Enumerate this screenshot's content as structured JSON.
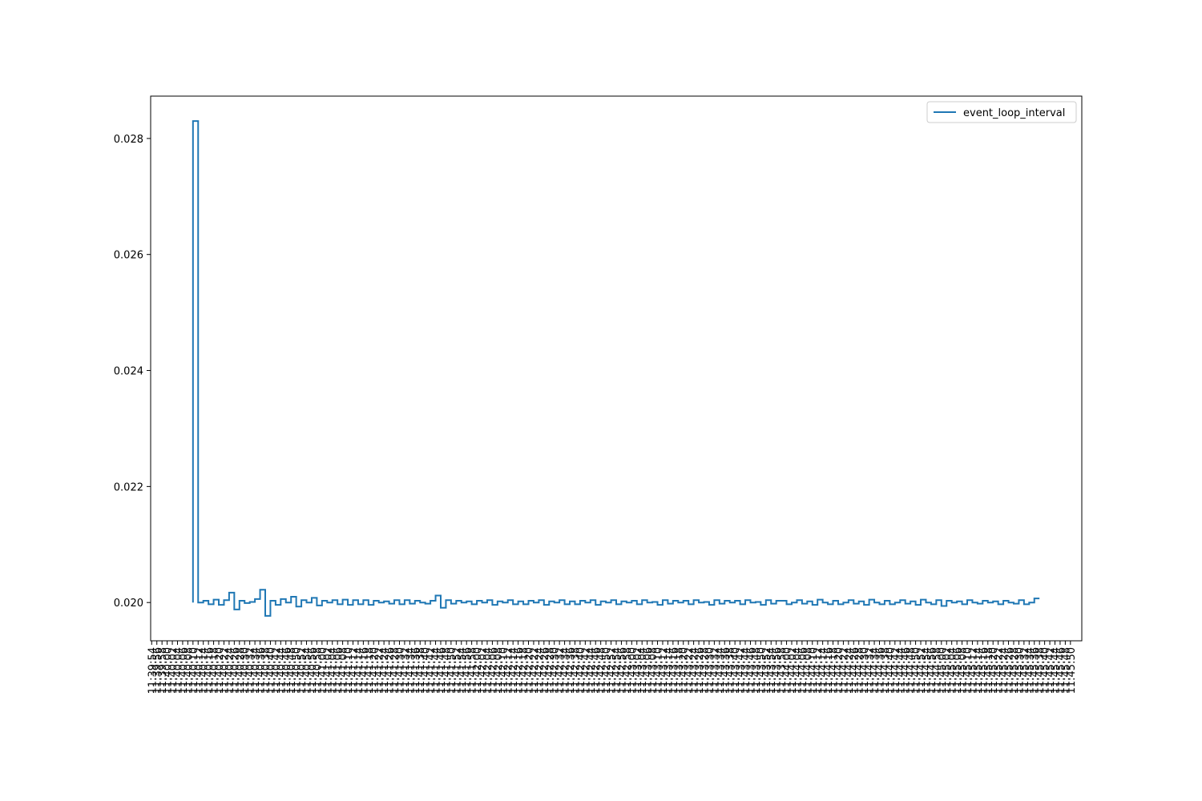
{
  "chart_data": {
    "type": "line",
    "step": "pre",
    "x": [
      "11:40:10",
      "11:40:12",
      "11:40:14",
      "11:40:16",
      "11:40:18",
      "11:40:20",
      "11:40:22",
      "11:40:24",
      "11:40:26",
      "11:40:28",
      "11:40:30",
      "11:40:32",
      "11:40:34",
      "11:40:36",
      "11:40:38",
      "11:40:40",
      "11:40:42",
      "11:40:44",
      "11:40:46",
      "11:40:48",
      "11:40:50",
      "11:40:52",
      "11:40:54",
      "11:40:56",
      "11:40:58",
      "11:41:00",
      "11:41:02",
      "11:41:04",
      "11:41:06",
      "11:41:08",
      "11:41:10",
      "11:41:12",
      "11:41:14",
      "11:41:16",
      "11:41:18",
      "11:41:20",
      "11:41:22",
      "11:41:24",
      "11:41:26",
      "11:41:28",
      "11:41:30",
      "11:41:32",
      "11:41:34",
      "11:41:36",
      "11:41:38",
      "11:41:40",
      "11:41:42",
      "11:41:44",
      "11:41:46",
      "11:41:48",
      "11:41:50",
      "11:41:52",
      "11:41:54",
      "11:41:56",
      "11:41:58",
      "11:42:00",
      "11:42:02",
      "11:42:04",
      "11:42:06",
      "11:42:08",
      "11:42:10",
      "11:42:12",
      "11:42:14",
      "11:42:16",
      "11:42:18",
      "11:42:20",
      "11:42:22",
      "11:42:24",
      "11:42:26",
      "11:42:28",
      "11:42:30",
      "11:42:32",
      "11:42:34",
      "11:42:36",
      "11:42:38",
      "11:42:40",
      "11:42:42",
      "11:42:44",
      "11:42:46",
      "11:42:48",
      "11:42:50",
      "11:42:52",
      "11:42:54",
      "11:42:56",
      "11:42:58",
      "11:43:00",
      "11:43:02",
      "11:43:04",
      "11:43:06",
      "11:43:08",
      "11:43:10",
      "11:43:12",
      "11:43:14",
      "11:43:16",
      "11:43:18",
      "11:43:20",
      "11:43:22",
      "11:43:24",
      "11:43:26",
      "11:43:28",
      "11:43:30",
      "11:43:32",
      "11:43:34",
      "11:43:36",
      "11:43:38",
      "11:43:40",
      "11:43:42",
      "11:43:44",
      "11:43:46",
      "11:43:48",
      "11:43:50",
      "11:43:52",
      "11:43:54",
      "11:43:56",
      "11:43:58",
      "11:44:00",
      "11:44:02",
      "11:44:04",
      "11:44:06",
      "11:44:08",
      "11:44:10",
      "11:44:12",
      "11:44:14",
      "11:44:16",
      "11:44:18",
      "11:44:20",
      "11:44:22",
      "11:44:24",
      "11:44:26",
      "11:44:28",
      "11:44:30",
      "11:44:32",
      "11:44:34",
      "11:44:36",
      "11:44:38",
      "11:44:40",
      "11:44:42",
      "11:44:44",
      "11:44:46",
      "11:44:48",
      "11:44:50",
      "11:44:52",
      "11:44:54",
      "11:44:56",
      "11:44:58",
      "11:45:00",
      "11:45:02",
      "11:45:04",
      "11:45:06",
      "11:45:08",
      "11:45:10",
      "11:45:12",
      "11:45:14",
      "11:45:16",
      "11:45:18",
      "11:45:20",
      "11:45:22",
      "11:45:24",
      "11:45:26",
      "11:45:28",
      "11:45:30",
      "11:45:32",
      "11:45:34",
      "11:45:36",
      "11:45:38"
    ],
    "series": [
      {
        "name": "event_loop_interval",
        "color": "#1f77b4",
        "values": [
          0.02,
          0.0283,
          0.02,
          0.02003,
          0.01997,
          0.02005,
          0.01996,
          0.02004,
          0.02017,
          0.01988,
          0.02003,
          0.01999,
          0.02001,
          0.02006,
          0.02022,
          0.01977,
          0.02003,
          0.01996,
          0.02006,
          0.02,
          0.0201,
          0.01993,
          0.02004,
          0.02,
          0.02008,
          0.01995,
          0.02003,
          0.02,
          0.02004,
          0.01997,
          0.02005,
          0.01996,
          0.02004,
          0.01997,
          0.02004,
          0.01996,
          0.02003,
          0.02,
          0.02002,
          0.01998,
          0.02004,
          0.01997,
          0.02004,
          0.01998,
          0.02003,
          0.02,
          0.01998,
          0.02003,
          0.02012,
          0.01991,
          0.02004,
          0.01998,
          0.02003,
          0.02,
          0.02002,
          0.01997,
          0.02003,
          0.02,
          0.02004,
          0.01996,
          0.02002,
          0.02,
          0.02004,
          0.01997,
          0.02002,
          0.01997,
          0.02003,
          0.02,
          0.02004,
          0.01996,
          0.02002,
          0.02,
          0.02004,
          0.01997,
          0.02002,
          0.01997,
          0.02003,
          0.02,
          0.02004,
          0.01996,
          0.02002,
          0.02,
          0.02004,
          0.01997,
          0.02002,
          0.02,
          0.02003,
          0.01997,
          0.02004,
          0.02,
          0.02001,
          0.01996,
          0.02004,
          0.01998,
          0.02003,
          0.02,
          0.02003,
          0.01997,
          0.02004,
          0.02,
          0.02001,
          0.01996,
          0.02004,
          0.01998,
          0.02003,
          0.02,
          0.02003,
          0.01997,
          0.02004,
          0.02,
          0.02001,
          0.01996,
          0.02004,
          0.01998,
          0.02003,
          0.02003,
          0.01997,
          0.02,
          0.02004,
          0.01998,
          0.02002,
          0.01996,
          0.02005,
          0.02,
          0.01997,
          0.02003,
          0.01997,
          0.02,
          0.02004,
          0.01998,
          0.02002,
          0.01996,
          0.02005,
          0.02,
          0.01997,
          0.02003,
          0.01997,
          0.02,
          0.02004,
          0.01998,
          0.02002,
          0.01996,
          0.02005,
          0.02,
          0.01997,
          0.02004,
          0.01994,
          0.02003,
          0.02,
          0.02002,
          0.01997,
          0.02004,
          0.02,
          0.01998,
          0.02003,
          0.02,
          0.02002,
          0.01997,
          0.02003,
          0.02,
          0.01998,
          0.02004,
          0.01997,
          0.02,
          0.02007
        ]
      }
    ],
    "xlim": [
      "11:39:53.6",
      "11:45:54.4"
    ],
    "xticks": [
      "11:39:54",
      "11:39:56",
      "11:39:58",
      "11:40:00",
      "11:40:02",
      "11:40:04",
      "11:40:06",
      "11:40:08",
      "11:40:10",
      "11:40:12",
      "11:40:14",
      "11:40:16",
      "11:40:18",
      "11:40:20",
      "11:40:22",
      "11:40:24",
      "11:40:26",
      "11:40:28",
      "11:40:30",
      "11:40:32",
      "11:40:34",
      "11:40:36",
      "11:40:38",
      "11:40:40",
      "11:40:42",
      "11:40:44",
      "11:40:46",
      "11:40:48",
      "11:40:50",
      "11:40:52",
      "11:40:54",
      "11:40:56",
      "11:40:58",
      "11:41:00",
      "11:41:02",
      "11:41:04",
      "11:41:06",
      "11:41:08",
      "11:41:10",
      "11:41:12",
      "11:41:14",
      "11:41:16",
      "11:41:18",
      "11:41:20",
      "11:41:22",
      "11:41:24",
      "11:41:26",
      "11:41:28",
      "11:41:30",
      "11:41:32",
      "11:41:34",
      "11:41:36",
      "11:41:38",
      "11:41:40",
      "11:41:42",
      "11:41:44",
      "11:41:46",
      "11:41:48",
      "11:41:50",
      "11:41:52",
      "11:41:54",
      "11:41:56",
      "11:41:58",
      "11:42:00",
      "11:42:02",
      "11:42:04",
      "11:42:06",
      "11:42:08",
      "11:42:10",
      "11:42:12",
      "11:42:14",
      "11:42:16",
      "11:42:18",
      "11:42:20",
      "11:42:22",
      "11:42:24",
      "11:42:26",
      "11:42:28",
      "11:42:30",
      "11:42:32",
      "11:42:34",
      "11:42:36",
      "11:42:38",
      "11:42:40",
      "11:42:42",
      "11:42:44",
      "11:42:46",
      "11:42:48",
      "11:42:50",
      "11:42:52",
      "11:42:54",
      "11:42:56",
      "11:42:58",
      "11:43:00",
      "11:43:02",
      "11:43:04",
      "11:43:06",
      "11:43:08",
      "11:43:10",
      "11:43:12",
      "11:43:14",
      "11:43:16",
      "11:43:18",
      "11:43:20",
      "11:43:22",
      "11:43:24",
      "11:43:26",
      "11:43:28",
      "11:43:30",
      "11:43:32",
      "11:43:34",
      "11:43:36",
      "11:43:38",
      "11:43:40",
      "11:43:42",
      "11:43:44",
      "11:43:46",
      "11:43:48",
      "11:43:50",
      "11:43:52",
      "11:43:54",
      "11:43:56",
      "11:43:58",
      "11:44:00",
      "11:44:02",
      "11:44:04",
      "11:44:06",
      "11:44:08",
      "11:44:10",
      "11:44:12",
      "11:44:14",
      "11:44:16",
      "11:44:18",
      "11:44:20",
      "11:44:22",
      "11:44:24",
      "11:44:26",
      "11:44:28",
      "11:44:30",
      "11:44:32",
      "11:44:34",
      "11:44:36",
      "11:44:38",
      "11:44:40",
      "11:44:42",
      "11:44:44",
      "11:44:46",
      "11:44:48",
      "11:44:50",
      "11:44:52",
      "11:44:54",
      "11:44:56",
      "11:44:58",
      "11:45:00",
      "11:45:02",
      "11:45:04",
      "11:45:06",
      "11:45:08",
      "11:45:10",
      "11:45:12",
      "11:45:14",
      "11:45:16",
      "11:45:18",
      "11:45:20",
      "11:45:22",
      "11:45:24",
      "11:45:26",
      "11:45:28",
      "11:45:30",
      "11:45:32",
      "11:45:34",
      "11:45:36",
      "11:45:38",
      "11:45:40",
      "11:45:42",
      "11:45:44",
      "11:45:46",
      "11:45:48",
      "11:45:50"
    ],
    "ylim": [
      0.01934,
      0.02873
    ],
    "yticks": [
      {
        "value": 0.02,
        "label": "0.020"
      },
      {
        "value": 0.022,
        "label": "0.022"
      },
      {
        "value": 0.024,
        "label": "0.024"
      },
      {
        "value": 0.026,
        "label": "0.026"
      },
      {
        "value": 0.028,
        "label": "0.028"
      }
    ],
    "grid": false,
    "legend": "upper right"
  }
}
